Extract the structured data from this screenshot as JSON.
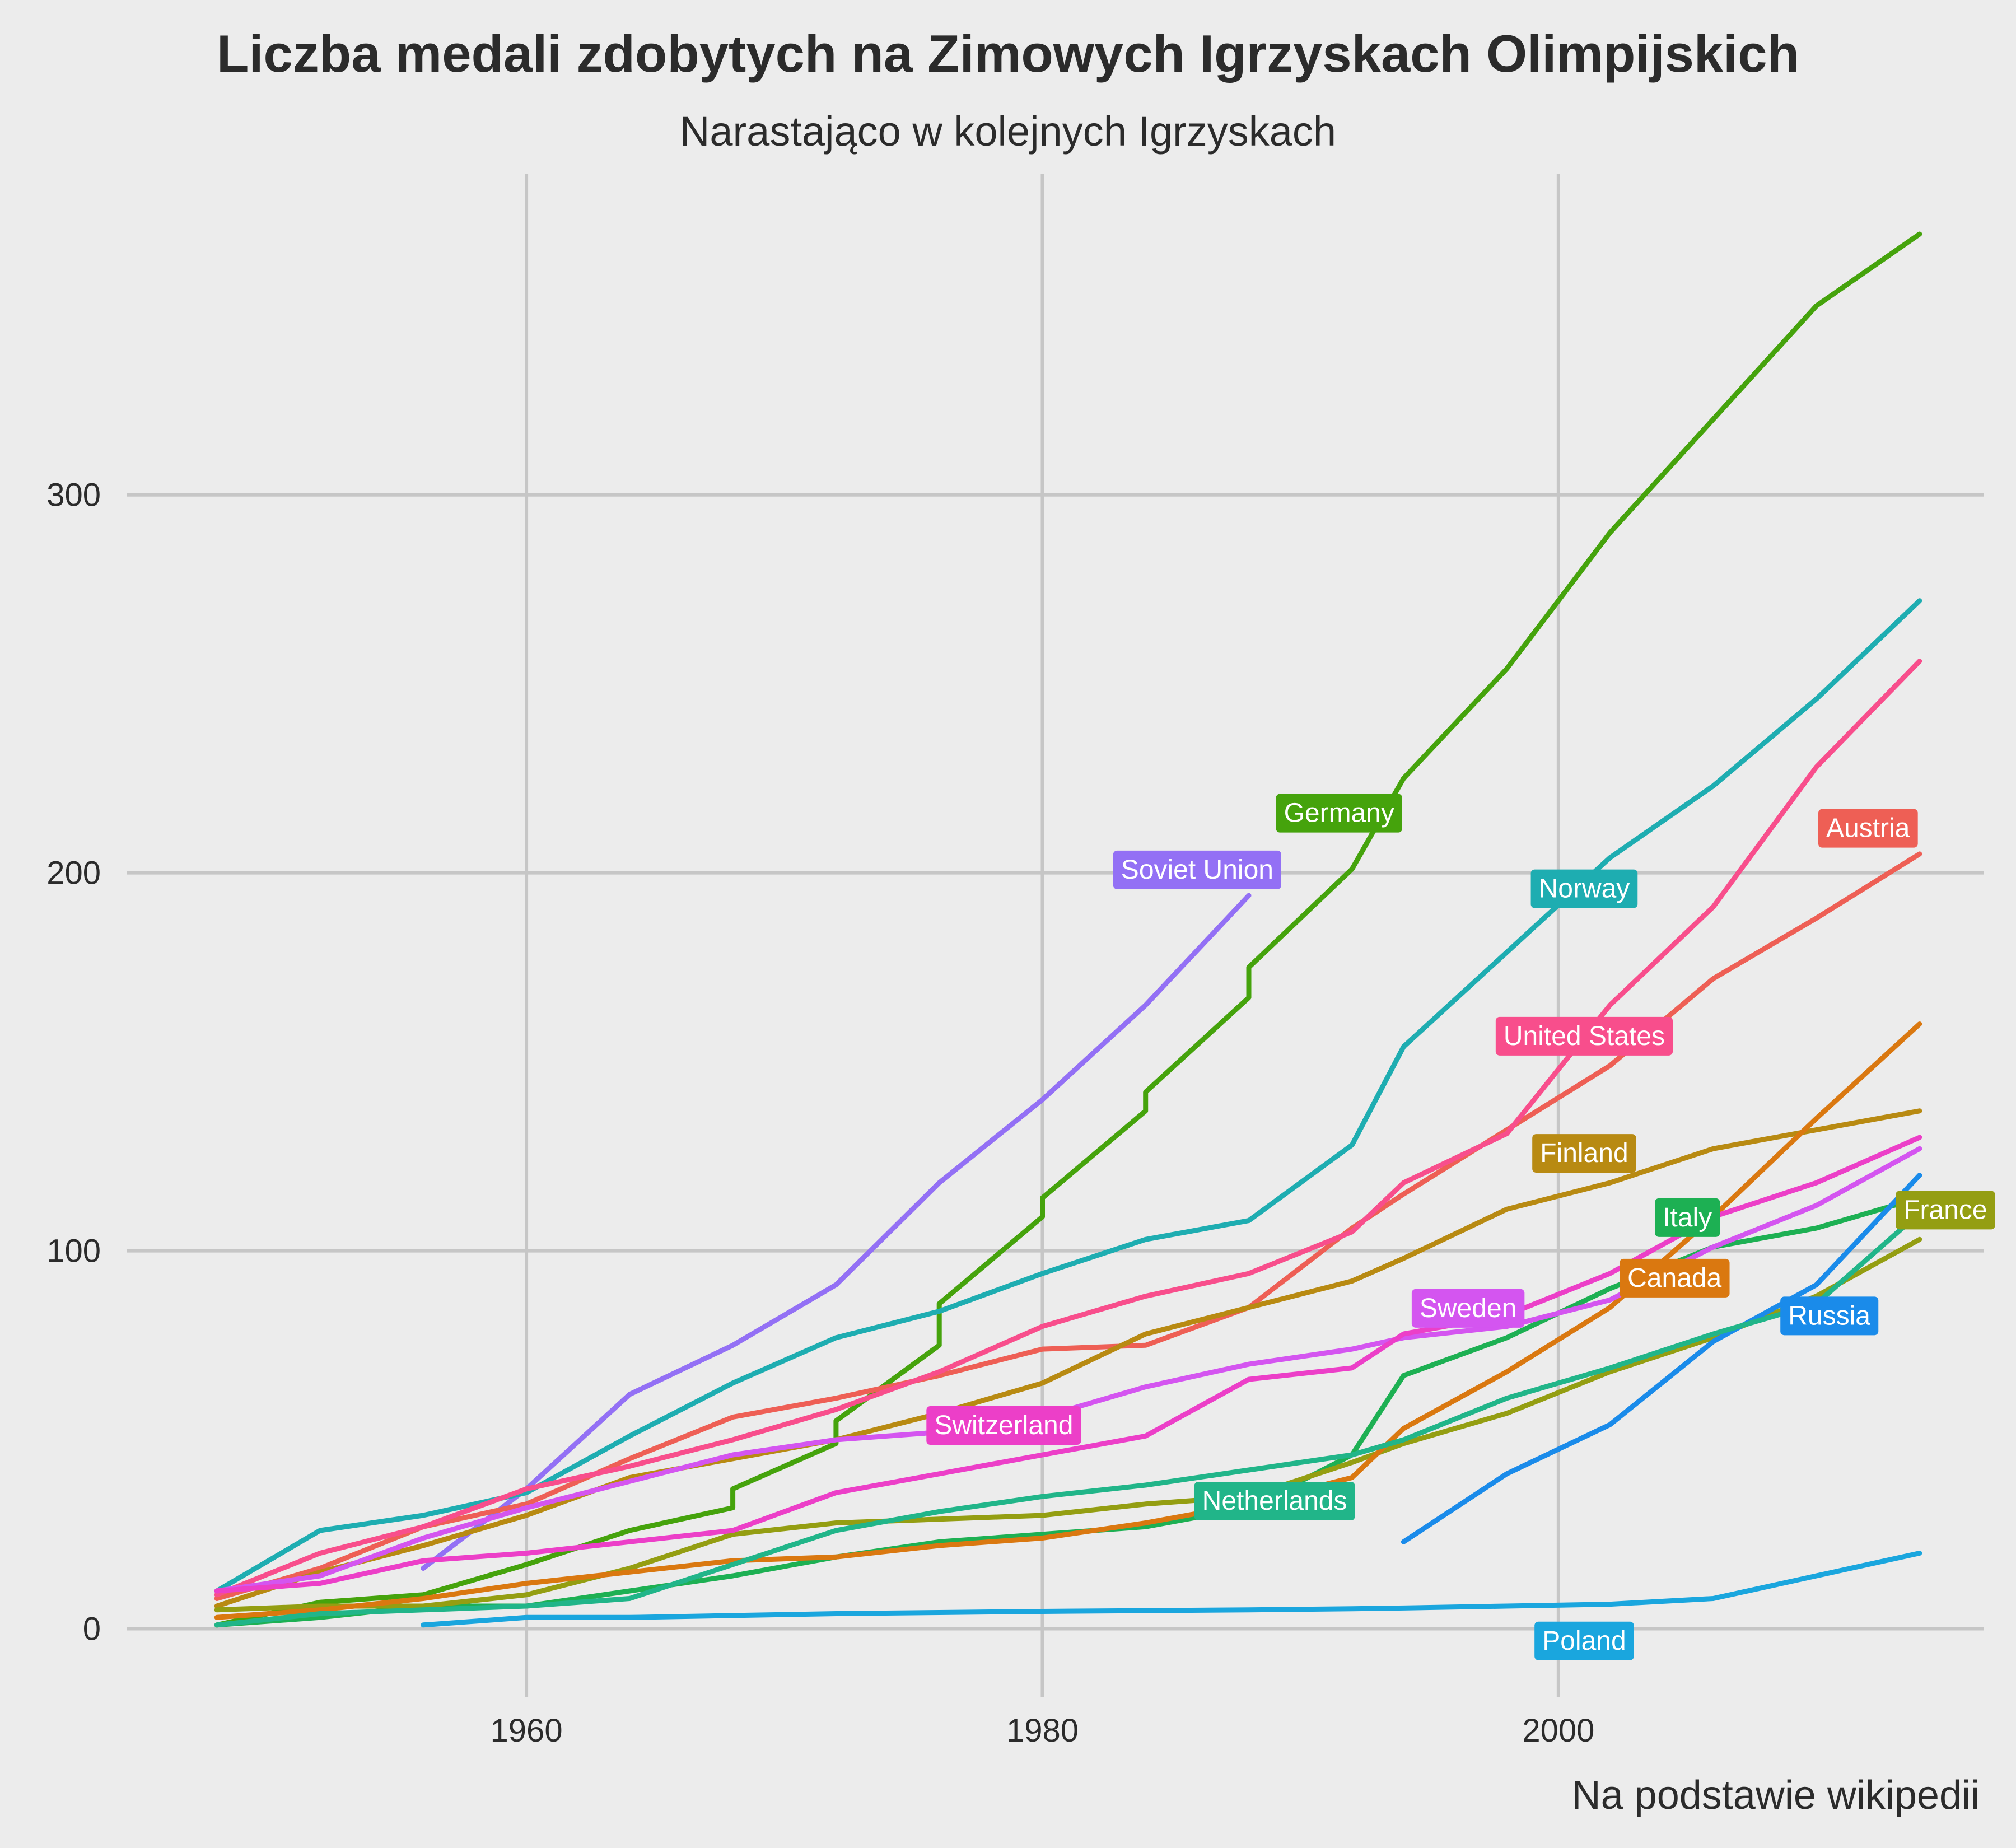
{
  "chart_data": {
    "type": "line",
    "title": "Liczba medali zdobytych na Zimowych Igrzyskach Olimpijskich",
    "subtitle": "Narastająco w kolejnych Igrzyskach",
    "caption": "Na podstawie wikipedii",
    "xlabel": "",
    "ylabel": "",
    "xlim": [
      1944.5,
      2016.5
    ],
    "ylim": [
      -18,
      385
    ],
    "x_ticks": [
      1960,
      1980,
      2000
    ],
    "y_ticks": [
      0,
      100,
      200,
      300
    ],
    "grid": true,
    "legend": "direct labels",
    "series": [
      {
        "name": "Germany",
        "color": "#45A30C",
        "x": [
          1948,
          1952,
          1956,
          1960,
          1964,
          1968,
          1968,
          1972,
          1972,
          1976,
          1976,
          1980,
          1980,
          1984,
          1984,
          1988,
          1988,
          1992,
          1994,
          1998,
          2002,
          2006,
          2010,
          2014
        ],
        "y": [
          1,
          7,
          9,
          17,
          26,
          32,
          37,
          49,
          55,
          75,
          86,
          109,
          114,
          137,
          142,
          167,
          175,
          201,
          225,
          254,
          290,
          320,
          350,
          369
        ],
        "label_x": 1991.5,
        "label_y": 216
      },
      {
        "name": "Soviet Union",
        "color": "#9370F5",
        "x": [
          1956,
          1960,
          1964,
          1968,
          1972,
          1976,
          1980,
          1984,
          1988
        ],
        "y": [
          16,
          37,
          62,
          75,
          91,
          118,
          140,
          165,
          194
        ],
        "label_x": 1986,
        "label_y": 201
      },
      {
        "name": "Norway",
        "color": "#1EADB1",
        "x": [
          1948,
          1952,
          1956,
          1960,
          1964,
          1968,
          1972,
          1976,
          1980,
          1984,
          1988,
          1992,
          1994,
          1998,
          2002,
          2006,
          2010,
          2014
        ],
        "y": [
          10,
          26,
          30,
          36,
          51,
          65,
          77,
          84,
          94,
          103,
          108,
          128,
          154,
          179,
          204,
          223,
          246,
          272
        ],
        "label_x": 2001,
        "label_y": 196
      },
      {
        "name": "Austria",
        "color": "#EE5F55",
        "x": [
          1948,
          1952,
          1956,
          1960,
          1964,
          1968,
          1972,
          1976,
          1980,
          1984,
          1988,
          1992,
          1994,
          1998,
          2002,
          2006,
          2010,
          2014
        ],
        "y": [
          8,
          16,
          27,
          33,
          45,
          56,
          61,
          67,
          74,
          75,
          85,
          106,
          115,
          132,
          149,
          172,
          188,
          205
        ],
        "label_x": 2012,
        "label_y": 212
      },
      {
        "name": "United States",
        "color": "#F84E8C",
        "x": [
          1948,
          1952,
          1956,
          1960,
          1964,
          1968,
          1972,
          1976,
          1980,
          1984,
          1988,
          1992,
          1994,
          1998,
          2002,
          2006,
          2010,
          2014
        ],
        "y": [
          9,
          20,
          27,
          37,
          43,
          50,
          58,
          68,
          80,
          88,
          94,
          105,
          118,
          131,
          165,
          191,
          228,
          256
        ],
        "label_x": 2001,
        "label_y": 157
      },
      {
        "name": "Finland",
        "color": "#B88A12",
        "x": [
          1948,
          1952,
          1956,
          1960,
          1964,
          1968,
          1972,
          1976,
          1980,
          1984,
          1988,
          1992,
          1994,
          1998,
          2002,
          2006,
          2010,
          2014
        ],
        "y": [
          6,
          15,
          22,
          30,
          40,
          45,
          50,
          57,
          65,
          78,
          85,
          92,
          98,
          111,
          118,
          127,
          132,
          137
        ],
        "label_x": 2001,
        "label_y": 126
      },
      {
        "name": "Italy",
        "color": "#1DB053",
        "x": [
          1948,
          1952,
          1956,
          1960,
          1964,
          1968,
          1972,
          1976,
          1980,
          1984,
          1988,
          1992,
          1994,
          1998,
          2002,
          2006,
          2010,
          2014
        ],
        "y": [
          1,
          3,
          6,
          6,
          10,
          14,
          19,
          23,
          25,
          27,
          32,
          46,
          67,
          77,
          90,
          101,
          106,
          114
        ],
        "label_x": 2005,
        "label_y": 109
      },
      {
        "name": "France",
        "color": "#949E12",
        "x": [
          1948,
          1952,
          1956,
          1960,
          1964,
          1968,
          1972,
          1976,
          1980,
          1984,
          1988,
          1992,
          1994,
          1998,
          2002,
          2006,
          2010,
          2014
        ],
        "y": [
          5,
          6,
          6,
          9,
          16,
          25,
          28,
          29,
          30,
          33,
          35,
          44,
          49,
          57,
          68,
          77,
          88,
          103
        ],
        "label_x": 2015,
        "label_y": 111
      },
      {
        "name": "Canada",
        "color": "#DA7810",
        "x": [
          1948,
          1952,
          1956,
          1960,
          1964,
          1968,
          1972,
          1976,
          1980,
          1984,
          1988,
          1992,
          1994,
          1998,
          2002,
          2006,
          2010,
          2014
        ],
        "y": [
          3,
          5,
          8,
          12,
          15,
          18,
          19,
          22,
          24,
          28,
          33,
          40,
          53,
          68,
          85,
          109,
          135,
          160
        ],
        "label_x": 2004.5,
        "label_y": 93
      },
      {
        "name": "Sweden",
        "color": "#D455F0",
        "x": [
          1948,
          1952,
          1956,
          1960,
          1964,
          1968,
          1972,
          1976,
          1980,
          1984,
          1988,
          1992,
          1994,
          1998,
          2002,
          2006,
          2010,
          2014
        ],
        "y": [
          10,
          14,
          24,
          32,
          39,
          46,
          50,
          52,
          56,
          64,
          70,
          74,
          77,
          80,
          87,
          101,
          112,
          127
        ],
        "label_x": 1996.5,
        "label_y": 85
      },
      {
        "name": "Russia",
        "color": "#1A8BEA",
        "x": [
          1994,
          1998,
          2002,
          2006,
          2010,
          2014
        ],
        "y": [
          23,
          41,
          54,
          76,
          91,
          120
        ],
        "label_x": 2010.5,
        "label_y": 83
      },
      {
        "name": "Switzerland",
        "color": "#EC3FC8",
        "x": [
          1948,
          1952,
          1956,
          1960,
          1964,
          1968,
          1972,
          1976,
          1980,
          1984,
          1988,
          1992,
          1994,
          1998,
          2002,
          2006,
          2010,
          2014
        ],
        "y": [
          10,
          12,
          18,
          20,
          23,
          26,
          36,
          41,
          46,
          51,
          66,
          69,
          78,
          83,
          94,
          109,
          118,
          130
        ],
        "label_x": 1978.5,
        "label_y": 54
      },
      {
        "name": "Netherlands",
        "color": "#21B589",
        "x": [
          1948,
          1952,
          1956,
          1960,
          1964,
          1968,
          1972,
          1976,
          1980,
          1984,
          1988,
          1992,
          1994,
          1998,
          2002,
          2006,
          2010,
          2014
        ],
        "y": [
          1,
          4,
          5,
          6,
          8,
          17,
          26,
          31,
          35,
          38,
          42,
          46,
          50,
          61,
          69,
          78,
          86,
          110
        ],
        "label_x": 1989,
        "label_y": 34
      },
      {
        "name": "Poland",
        "color": "#1AA6DE",
        "x": [
          1956,
          1960,
          1964,
          1968,
          1972,
          1976,
          1980,
          1984,
          1988,
          1992,
          1994,
          1998,
          2002,
          2006,
          2010,
          2014
        ],
        "y": [
          1,
          3,
          3,
          3.5,
          4,
          4.3,
          4.6,
          4.8,
          5,
          5.3,
          5.5,
          6,
          6.5,
          8,
          14,
          20
        ],
        "label_x": 2001,
        "label_y": -3
      }
    ]
  }
}
